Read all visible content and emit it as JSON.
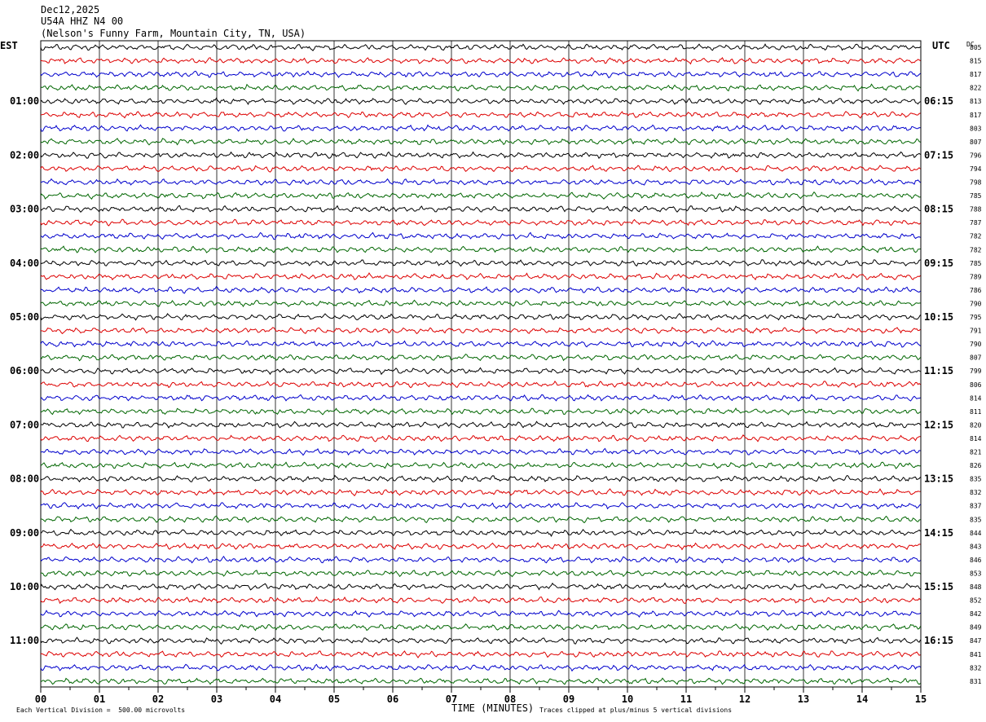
{
  "header": {
    "date": "Dec12,2025",
    "station": "U54A HHZ N4 00",
    "location": "(Nelson's Funny Farm, Mountain City, TN, USA)"
  },
  "left_zone_label": "EST",
  "right_zone_label": "UTC",
  "dc_label": "DC",
  "footer": {
    "scale_text": "Each Vertical Division =  500.00 microvolts",
    "xlabel": "TIME (MINUTES)",
    "clip_text": "Traces clipped at plus/minus 5 vertical divisions"
  },
  "chart_data": {
    "type": "line",
    "title": "",
    "xlabel": "TIME (MINUTES)",
    "xlim": [
      0,
      15
    ],
    "x_ticks": [
      "00",
      "01",
      "02",
      "03",
      "04",
      "05",
      "06",
      "07",
      "08",
      "09",
      "10",
      "11",
      "12",
      "13",
      "14",
      "15"
    ],
    "trace_colors": [
      "#000000",
      "#dd0000",
      "#0000cc",
      "#006600"
    ],
    "trace_count": 48,
    "left_hour_labels": [
      "01:00",
      "02:00",
      "03:00",
      "04:00",
      "05:00",
      "06:00",
      "07:00",
      "08:00",
      "09:00",
      "10:00",
      "11:00"
    ],
    "right_hour_labels": [
      "06:15",
      "07:15",
      "08:15",
      "09:15",
      "10:15",
      "11:15",
      "12:15",
      "13:15",
      "14:15",
      "15:15",
      "16:15"
    ],
    "dc_offsets": [
      805,
      815,
      817,
      822,
      813,
      817,
      803,
      807,
      796,
      794,
      798,
      785,
      788,
      787,
      782,
      782,
      785,
      789,
      786,
      790,
      795,
      791,
      790,
      807,
      799,
      806,
      814,
      811,
      820,
      814,
      821,
      826,
      835,
      832,
      837,
      835,
      844,
      843,
      846,
      853,
      848,
      852,
      842,
      849,
      847,
      841,
      832,
      831
    ]
  }
}
